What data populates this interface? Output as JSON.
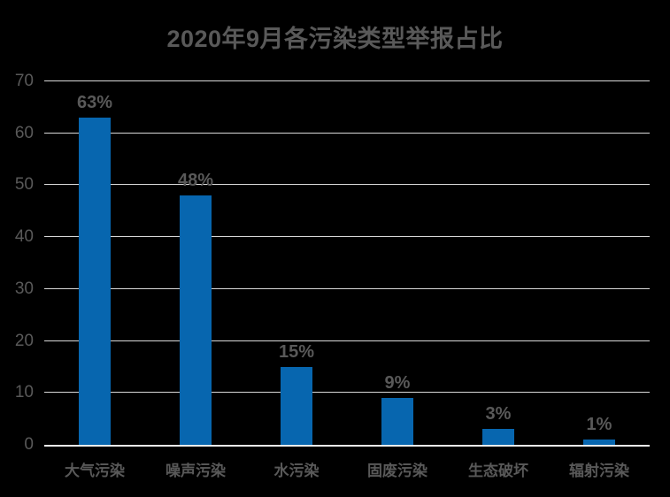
{
  "title": "2020年9月各污染类型举报占比",
  "colors": {
    "background": "#000000",
    "bar": "#0766af",
    "text": "#595959",
    "gridline": "#d9d9d9",
    "axis_line": "#ededed"
  },
  "chart_data": {
    "type": "bar",
    "title": "2020年9月各污染类型举报占比",
    "categories": [
      "大气污染",
      "噪声污染",
      "水污染",
      "固废污染",
      "生态破坏",
      "辐射污染"
    ],
    "values": [
      63,
      48,
      15,
      9,
      3,
      1
    ],
    "data_labels": [
      "63%",
      "48%",
      "15%",
      "9%",
      "3%",
      "1%"
    ],
    "xlabel": "",
    "ylabel": "",
    "ylim": [
      0,
      70
    ],
    "yticks": [
      0,
      10,
      20,
      30,
      40,
      50,
      60,
      70
    ],
    "grid": true,
    "legend": false,
    "bar_color": "#0766af",
    "label_color": "#595959",
    "background": "#000000"
  }
}
